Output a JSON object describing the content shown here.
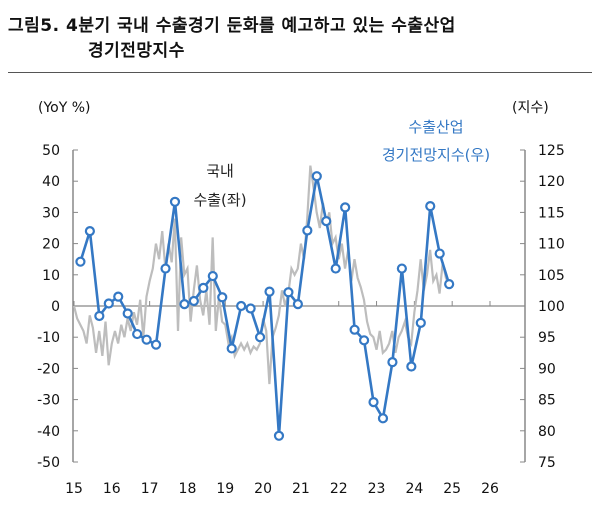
{
  "title": {
    "line1": "그림5.  4분기  국내  수출경기  둔화를  예고하고  있는  수출산업",
    "line2": "경기전망지수"
  },
  "chart_data": {
    "type": "line",
    "title": "4분기 국내 수출경기 둔화를 예고하고 있는 수출산업 경기전망지수",
    "left_axis_label": "(YoY %)",
    "right_axis_label": "(지수)",
    "ylim_left": [
      -50,
      50
    ],
    "ylim_right": [
      75,
      125
    ],
    "left_ticks": [
      "50",
      "40",
      "30",
      "20",
      "10",
      "0",
      "-10",
      "-20",
      "-30",
      "-40",
      "-50"
    ],
    "right_ticks": [
      "125",
      "120",
      "115",
      "110",
      "105",
      "100",
      "95",
      "90",
      "85",
      "80",
      "75"
    ],
    "x_ticks": [
      "15",
      "16",
      "17",
      "18",
      "19",
      "20",
      "21",
      "22",
      "23",
      "24",
      "25",
      "26"
    ],
    "xlim": [
      2015,
      2026
    ],
    "grid": false,
    "series": [
      {
        "name": "국내 수출(좌)",
        "label_lines": [
          "국내",
          "수출(좌)"
        ],
        "axis": "left",
        "color": "#bdbdbd",
        "frequency": "monthly",
        "start": 2015.0,
        "values": [
          0,
          -4,
          -6,
          -8,
          -12,
          -3,
          -7,
          -15,
          -8,
          -16,
          -5,
          -19,
          -12,
          -8,
          -12,
          -6,
          -10,
          -4,
          -8,
          -2,
          -6,
          2,
          -10,
          3,
          8,
          12,
          20,
          15,
          24,
          12,
          20,
          14,
          28,
          -8,
          22,
          10,
          12,
          -5,
          5,
          13,
          2,
          -3,
          5,
          -6,
          22,
          -8,
          3,
          -5,
          -6,
          -12,
          -10,
          -16,
          -14,
          -12,
          -14,
          -12,
          -15,
          -13,
          -14,
          -12,
          -4,
          -8,
          -25,
          -10,
          -7,
          -3,
          5,
          0,
          4,
          12,
          10,
          12,
          20,
          15,
          28,
          45,
          38,
          30,
          25,
          33,
          26,
          30,
          20,
          22,
          15,
          20,
          12,
          18,
          8,
          15,
          9,
          6,
          2,
          -5,
          -9,
          -10,
          -14,
          -8,
          -15,
          -14,
          -12,
          -8,
          -15,
          -10,
          -8,
          -5,
          -10,
          -12,
          -2,
          5,
          15,
          5,
          10,
          18,
          8,
          10,
          4,
          14,
          9,
          7
        ]
      },
      {
        "name": "수출산업 경기전망지수(우)",
        "label_lines": [
          "수출산업",
          "경기전망지수(우)"
        ],
        "axis": "right",
        "color": "#3478c4",
        "frequency": "quarterly",
        "start": 2015.17,
        "values": [
          107.1,
          112.0,
          98.4,
          100.4,
          101.5,
          98.8,
          95.5,
          94.6,
          93.8,
          106.0,
          116.7,
          100.3,
          100.8,
          102.9,
          104.8,
          101.4,
          93.2,
          100.0,
          99.6,
          95.0,
          102.3,
          79.2,
          102.2,
          100.3,
          112.1,
          120.8,
          113.6,
          106.0,
          115.8,
          96.2,
          94.5,
          84.6,
          82.0,
          91.0,
          106.0,
          90.3,
          97.3,
          116.0,
          108.4,
          103.5
        ]
      }
    ]
  }
}
